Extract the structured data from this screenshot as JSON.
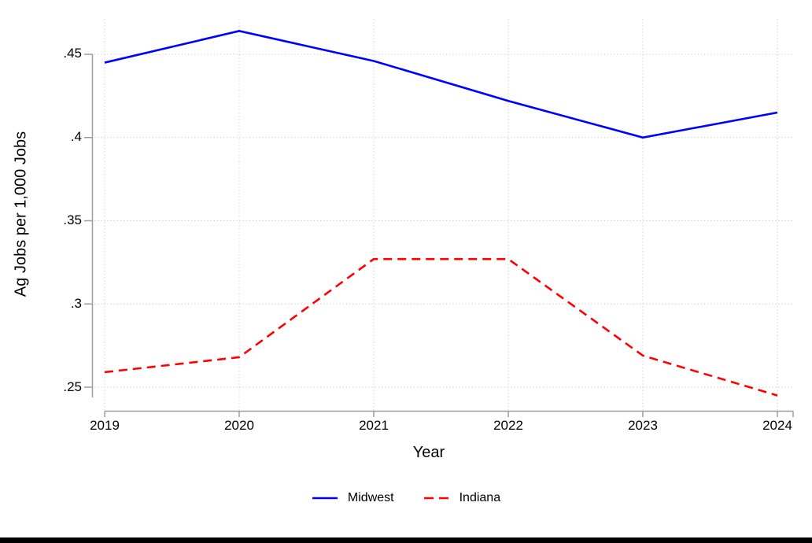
{
  "window": {
    "background": "#ffffff",
    "bottom_bar_color": "#000000"
  },
  "colors": {
    "gridline": "#cccccc",
    "axis": "#9e9e9e",
    "text": "#000000",
    "midwest_blue": "#0000ff",
    "indiana_red": "#ff0000"
  },
  "chart_data": {
    "type": "line",
    "title": "",
    "xlabel": "Year",
    "ylabel": "Ag Jobs per 1,000 Jobs",
    "x": [
      2019,
      2020,
      2021,
      2022,
      2023,
      2024
    ],
    "x_tick_labels": [
      "2019",
      "2020",
      "2021",
      "2022",
      "2023",
      "2024"
    ],
    "y_ticks": [
      0.25,
      0.3,
      0.35,
      0.4,
      0.45
    ],
    "y_tick_labels": [
      ".25",
      ".3",
      ".35",
      ".4",
      ".45"
    ],
    "xlim": [
      2019,
      2024
    ],
    "ylim": [
      0.236,
      0.471
    ],
    "grid": "dotted",
    "legend_position": "bottom",
    "series": [
      {
        "name": "Midwest",
        "color": "#0000ff",
        "line_style": "solid",
        "values": [
          0.445,
          0.464,
          0.446,
          0.422,
          0.4,
          0.415
        ]
      },
      {
        "name": "Indiana",
        "color": "#ff0000",
        "line_style": "dashed",
        "values": [
          0.259,
          0.268,
          0.327,
          0.327,
          0.269,
          0.245
        ]
      }
    ]
  }
}
